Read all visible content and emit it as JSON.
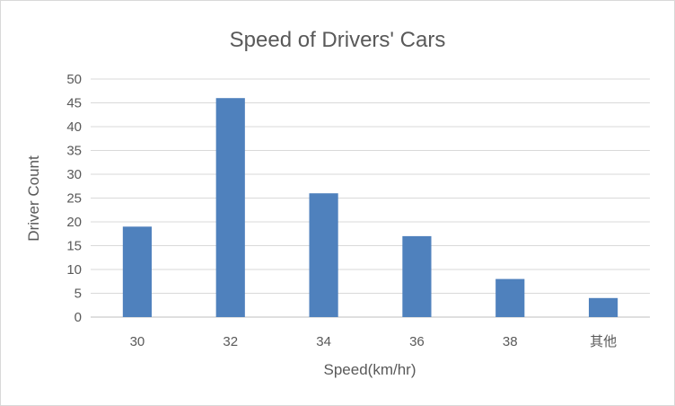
{
  "chart_data": {
    "type": "bar",
    "title": "Speed of Drivers' Cars",
    "xlabel": "Speed(km/hr)",
    "ylabel": "Driver Count",
    "categories": [
      "30",
      "32",
      "34",
      "36",
      "38",
      "其他"
    ],
    "values": [
      19,
      46,
      26,
      17,
      8,
      4
    ],
    "ylim": [
      0,
      50
    ],
    "yticks": [
      0,
      5,
      10,
      15,
      20,
      25,
      30,
      35,
      40,
      45,
      50
    ],
    "grid": true,
    "legend": "none",
    "bar_color": "#4f81bd"
  }
}
